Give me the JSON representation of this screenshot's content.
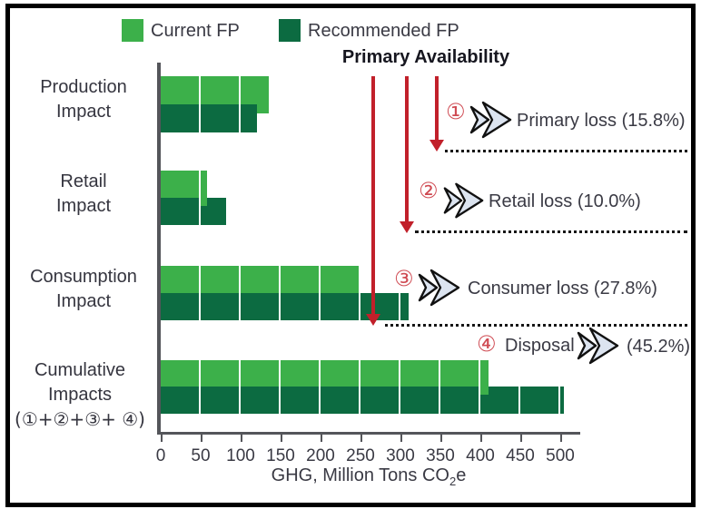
{
  "title": "Primary Availability",
  "legend": {
    "items": [
      {
        "label": "Current FP",
        "color": "#3cb04a"
      },
      {
        "label": "Recommended FP",
        "color": "#0c6b41"
      }
    ]
  },
  "category_labels": [
    {
      "line1": "Production",
      "line2": "Impact"
    },
    {
      "line1": "Retail",
      "line2": "Impact"
    },
    {
      "line1": "Consumption",
      "line2": "Impact"
    },
    {
      "line1": "Cumulative Impacts",
      "line2": "(①+②+③+ ④)"
    }
  ],
  "chart_data": {
    "type": "bar",
    "orientation": "horizontal",
    "title": "Primary Availability",
    "categories": [
      "Production Impact",
      "Retail Impact",
      "Consumption Impact",
      "Cumulative Impacts (①+②+③+④)"
    ],
    "series": [
      {
        "name": "Current FP",
        "color": "#3cb04a",
        "values": [
          135,
          58,
          250,
          410
        ]
      },
      {
        "name": "Recommended FP",
        "color": "#0c6b41",
        "values": [
          120,
          82,
          310,
          505
        ]
      }
    ],
    "xlabel": "GHG, Million Tons CO2e",
    "xlim": [
      0,
      500
    ],
    "xticks": [
      0,
      50,
      100,
      150,
      200,
      250,
      300,
      350,
      400,
      450,
      500
    ],
    "grid": false,
    "legend_position": "top",
    "annotation_arrows_x": [
      345,
      308,
      266
    ]
  },
  "axis": {
    "label_pre": "GHG, Million Tons CO",
    "label_sub": "2",
    "label_post": "e"
  },
  "annotations": [
    {
      "num": "①",
      "label": "Primary loss (15.8%)"
    },
    {
      "num": "②",
      "label": "Retail loss (10.0%)"
    },
    {
      "num": "③",
      "label": "Consumer loss (27.8%)"
    },
    {
      "num": "④",
      "label_pre": "Disposal",
      "label_post": "(45.2%)"
    }
  ],
  "colors": {
    "current_fp": "#3cb04a",
    "recommended_fp": "#0c6b41",
    "arrow_red": "#c1202a",
    "text": "#3a3a44"
  }
}
